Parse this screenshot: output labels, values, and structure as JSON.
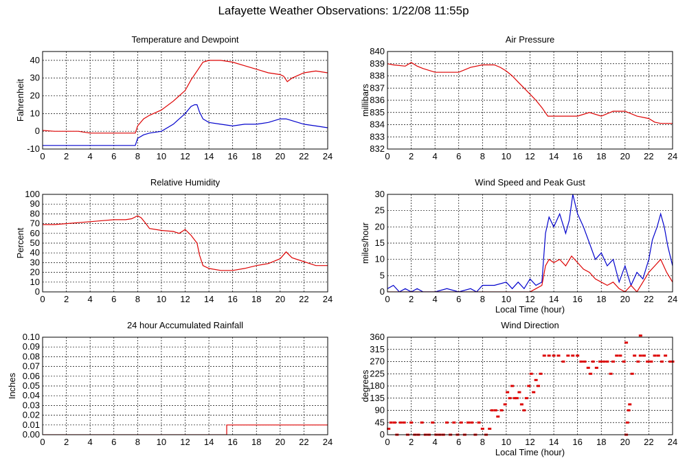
{
  "page_title": "Lafayette Weather Observations: 1/22/08 11:55p",
  "colors": {
    "red": "#dd0000",
    "blue": "#0000cc"
  },
  "chart_data": [
    {
      "id": "temp",
      "type": "line",
      "title": "Temperature and Dewpoint",
      "xlabel": "",
      "ylabel": "Fahrenheit",
      "xlim": [
        0,
        24
      ],
      "ylim": [
        -10,
        45
      ],
      "xticks": [
        0,
        2,
        4,
        6,
        8,
        10,
        12,
        14,
        16,
        18,
        20,
        22,
        24
      ],
      "yticks": [
        -10,
        0,
        10,
        20,
        30,
        40
      ],
      "series": [
        {
          "color": "#dd0000",
          "x": [
            0,
            1,
            2,
            3,
            4,
            5,
            6,
            7,
            7.8,
            8,
            8.5,
            9,
            10,
            11,
            12,
            12.5,
            13,
            13.5,
            14,
            15,
            16,
            17,
            18,
            19,
            20,
            20.3,
            20.6,
            21,
            22,
            23,
            24
          ],
          "y": [
            0.5,
            0,
            0,
            0,
            -1,
            -1,
            -1,
            -1,
            -1,
            3,
            7,
            9,
            12,
            17,
            23,
            29,
            34,
            39,
            40,
            40,
            39,
            37,
            35,
            33,
            32,
            31,
            28,
            30,
            33,
            34,
            33
          ]
        },
        {
          "color": "#0000cc",
          "x": [
            0,
            1,
            2,
            3,
            4,
            5,
            6,
            7,
            7.8,
            8,
            8.5,
            9,
            10,
            11,
            11.5,
            12,
            12.5,
            12.8,
            13,
            13.2,
            13.5,
            14,
            15,
            16,
            17,
            18,
            19,
            20,
            20.5,
            21,
            22,
            23,
            24
          ],
          "y": [
            -8,
            -8,
            -8,
            -8,
            -8,
            -8,
            -8,
            -8,
            -8,
            -4,
            -2,
            -1,
            0,
            4,
            7,
            10,
            14,
            15,
            15,
            11,
            7,
            5,
            4,
            3,
            4,
            4,
            5,
            7,
            7,
            6,
            4,
            3,
            2
          ]
        }
      ]
    },
    {
      "id": "pressure",
      "type": "line",
      "title": "Air Pressure",
      "xlabel": "",
      "ylabel": "millibars",
      "xlim": [
        0,
        24
      ],
      "ylim": [
        832,
        840
      ],
      "xticks": [
        0,
        2,
        4,
        6,
        8,
        10,
        12,
        14,
        16,
        18,
        20,
        22,
        24
      ],
      "yticks": [
        832,
        833,
        834,
        835,
        836,
        837,
        838,
        839,
        840
      ],
      "series": [
        {
          "color": "#dd0000",
          "step": true,
          "x": [
            0,
            0.5,
            1.5,
            2,
            2.5,
            3,
            4,
            5,
            6,
            7,
            8,
            9,
            9.5,
            10,
            10.5,
            11,
            11.5,
            12,
            12.5,
            13,
            13.5,
            14,
            15,
            16,
            17,
            18,
            19,
            20,
            21,
            22,
            22.5,
            23,
            24
          ],
          "y": [
            839,
            838.9,
            838.8,
            839.1,
            838.8,
            838.6,
            838.3,
            838.3,
            838.3,
            838.7,
            838.9,
            838.9,
            838.7,
            838.4,
            838,
            837.5,
            837,
            836.5,
            836,
            835.4,
            834.7,
            834.7,
            834.7,
            834.7,
            835,
            834.7,
            835.1,
            835.1,
            834.7,
            834.5,
            834.2,
            834.1,
            834.1
          ]
        }
      ]
    },
    {
      "id": "humidity",
      "type": "line",
      "title": "Relative Humidity",
      "xlabel": "",
      "ylabel": "Percent",
      "xlim": [
        0,
        24
      ],
      "ylim": [
        0,
        100
      ],
      "xticks": [
        0,
        2,
        4,
        6,
        8,
        10,
        12,
        14,
        16,
        18,
        20,
        22,
        24
      ],
      "yticks": [
        0,
        10,
        20,
        30,
        40,
        50,
        60,
        70,
        80,
        90,
        100
      ],
      "series": [
        {
          "color": "#dd0000",
          "x": [
            0,
            1,
            2,
            3,
            4,
            5,
            6,
            7,
            7.5,
            8,
            8.3,
            8.7,
            9,
            10,
            11,
            11.5,
            12,
            12.5,
            13,
            13.2,
            13.5,
            14,
            15,
            16,
            17,
            18,
            19,
            20,
            20.5,
            21,
            22,
            23,
            24
          ],
          "y": [
            69,
            69,
            70,
            71,
            72,
            73,
            74,
            74,
            75,
            78,
            76,
            70,
            65,
            63,
            62,
            60,
            64,
            58,
            50,
            38,
            27,
            24,
            22,
            22,
            24,
            27,
            29,
            34,
            41,
            35,
            31,
            27,
            27
          ]
        }
      ]
    },
    {
      "id": "wind",
      "type": "line",
      "title": "Wind Speed and Peak Gust",
      "xlabel": "Local Time (hour)",
      "ylabel": "miles/hour",
      "xlim": [
        0,
        24
      ],
      "ylim": [
        0,
        30
      ],
      "xticks": [
        0,
        2,
        4,
        6,
        8,
        10,
        12,
        14,
        16,
        18,
        20,
        22,
        24
      ],
      "yticks": [
        0,
        5,
        10,
        15,
        20,
        25,
        30
      ],
      "series": [
        {
          "color": "#0000cc",
          "x": [
            0,
            0.5,
            1,
            1.5,
            2,
            2.5,
            3,
            4,
            5,
            6,
            7,
            7.5,
            8,
            9,
            10,
            10.5,
            11,
            11.5,
            12,
            12.5,
            13,
            13.3,
            13.6,
            14,
            14.5,
            15,
            15.3,
            15.6,
            16,
            16.5,
            17,
            17.5,
            18,
            18.5,
            19,
            19.5,
            20,
            20.5,
            21,
            21.5,
            22,
            22.3,
            22.7,
            23,
            23.3,
            23.6,
            24
          ],
          "y": [
            1,
            2,
            0,
            1,
            0,
            1,
            0,
            0,
            1,
            0,
            1,
            0,
            2,
            2,
            3,
            1,
            3,
            1,
            4,
            2,
            3,
            18,
            23,
            20,
            24,
            18,
            22,
            30,
            24,
            20,
            15,
            10,
            12,
            8,
            10,
            3,
            8,
            2,
            6,
            4,
            10,
            16,
            20,
            24,
            20,
            14,
            8
          ]
        },
        {
          "color": "#dd0000",
          "x": [
            0,
            1,
            2,
            3,
            4,
            5,
            6,
            7,
            8,
            9,
            10,
            11,
            12,
            12.5,
            13,
            13.3,
            13.6,
            14,
            14.5,
            15,
            15.5,
            16,
            16.5,
            17,
            17.5,
            18,
            18.5,
            19,
            19.5,
            20,
            20.5,
            21,
            21.5,
            22,
            22.5,
            23,
            23.5,
            24
          ],
          "y": [
            0,
            0,
            0,
            0,
            0,
            0,
            0,
            0,
            0,
            0,
            0,
            0,
            0,
            1,
            2,
            8,
            10,
            9,
            10,
            8,
            11,
            9,
            7,
            6,
            4,
            3,
            2,
            3,
            1,
            0,
            2,
            0,
            3,
            6,
            8,
            10,
            6,
            3
          ]
        }
      ]
    },
    {
      "id": "rain",
      "type": "line",
      "title": "24 hour Accumulated Rainfall",
      "xlabel": "",
      "ylabel": "Inches",
      "xlim": [
        0,
        24
      ],
      "ylim": [
        0,
        0.1
      ],
      "xticks": [
        0,
        2,
        4,
        6,
        8,
        10,
        12,
        14,
        16,
        18,
        20,
        22,
        24
      ],
      "yticks": [
        "0.00",
        "0.01",
        "0.02",
        "0.03",
        "0.04",
        "0.05",
        "0.06",
        "0.07",
        "0.08",
        "0.09",
        "0.10"
      ],
      "series": [
        {
          "color": "#dd0000",
          "step": true,
          "x": [
            0,
            15.5,
            15.5,
            24
          ],
          "y": [
            0,
            0,
            0.01,
            0.01
          ]
        }
      ]
    },
    {
      "id": "winddir",
      "type": "scatter",
      "title": "Wind Direction",
      "xlabel": "Local Time (hour)",
      "ylabel": "degrees",
      "xlim": [
        0,
        24
      ],
      "ylim": [
        0,
        360
      ],
      "xticks": [
        0,
        2,
        4,
        6,
        8,
        10,
        12,
        14,
        16,
        18,
        20,
        22,
        24
      ],
      "yticks": [
        0,
        45,
        90,
        135,
        180,
        225,
        270,
        315,
        360
      ],
      "series": [
        {
          "color": "#dd0000",
          "marker": "dash",
          "points": [
            [
              0.1,
              22
            ],
            [
              0.3,
              45
            ],
            [
              0.6,
              45
            ],
            [
              0.8,
              0
            ],
            [
              1.1,
              45
            ],
            [
              1.4,
              45
            ],
            [
              1.7,
              0
            ],
            [
              2.0,
              45
            ],
            [
              2.3,
              0
            ],
            [
              2.6,
              0
            ],
            [
              2.9,
              45
            ],
            [
              3.2,
              0
            ],
            [
              3.5,
              0
            ],
            [
              3.8,
              45
            ],
            [
              4.1,
              0
            ],
            [
              4.4,
              0
            ],
            [
              4.7,
              0
            ],
            [
              5.0,
              45
            ],
            [
              5.3,
              0
            ],
            [
              5.6,
              45
            ],
            [
              5.9,
              0
            ],
            [
              6.2,
              45
            ],
            [
              6.5,
              0
            ],
            [
              6.8,
              45
            ],
            [
              7.1,
              45
            ],
            [
              7.4,
              0
            ],
            [
              7.7,
              45
            ],
            [
              8.0,
              22
            ],
            [
              8.3,
              0
            ],
            [
              8.6,
              22
            ],
            [
              8.8,
              90
            ],
            [
              9.1,
              90
            ],
            [
              9.3,
              67
            ],
            [
              9.6,
              90
            ],
            [
              9.9,
              112
            ],
            [
              10.1,
              157
            ],
            [
              10.3,
              135
            ],
            [
              10.5,
              180
            ],
            [
              10.7,
              135
            ],
            [
              10.9,
              135
            ],
            [
              11.1,
              157
            ],
            [
              11.3,
              112
            ],
            [
              11.5,
              90
            ],
            [
              11.7,
              135
            ],
            [
              11.9,
              180
            ],
            [
              12.1,
              225
            ],
            [
              12.3,
              157
            ],
            [
              12.5,
              202
            ],
            [
              12.7,
              180
            ],
            [
              12.9,
              225
            ],
            [
              13.2,
              292
            ],
            [
              13.6,
              292
            ],
            [
              14.0,
              292
            ],
            [
              14.4,
              292
            ],
            [
              14.8,
              270
            ],
            [
              15.2,
              292
            ],
            [
              15.6,
              292
            ],
            [
              16.0,
              292
            ],
            [
              16.3,
              270
            ],
            [
              16.6,
              270
            ],
            [
              16.9,
              247
            ],
            [
              17.1,
              225
            ],
            [
              17.3,
              270
            ],
            [
              17.6,
              247
            ],
            [
              17.9,
              270
            ],
            [
              18.2,
              270
            ],
            [
              18.5,
              270
            ],
            [
              18.8,
              225
            ],
            [
              19.0,
              270
            ],
            [
              19.3,
              292
            ],
            [
              19.6,
              292
            ],
            [
              19.9,
              270
            ],
            [
              20.1,
              0
            ],
            [
              20.2,
              45
            ],
            [
              20.3,
              90
            ],
            [
              20.4,
              112
            ],
            [
              20.6,
              225
            ],
            [
              20.8,
              292
            ],
            [
              21.1,
              270
            ],
            [
              21.3,
              292
            ],
            [
              21.6,
              292
            ],
            [
              21.9,
              270
            ],
            [
              22.2,
              270
            ],
            [
              22.5,
              292
            ],
            [
              22.8,
              292
            ],
            [
              23.1,
              270
            ],
            [
              23.4,
              292
            ],
            [
              23.8,
              270
            ],
            [
              24.0,
              270
            ],
            [
              20.1,
              340
            ],
            [
              21.3,
              366
            ]
          ]
        }
      ]
    }
  ]
}
